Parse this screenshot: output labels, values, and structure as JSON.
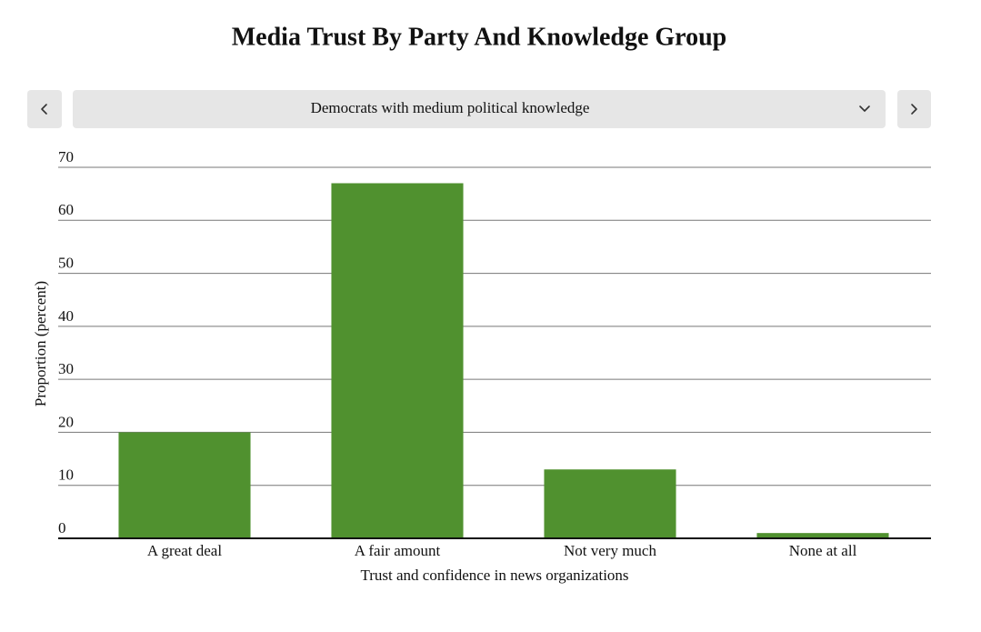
{
  "chart_data": {
    "type": "bar",
    "title": "Media Trust By Party And Knowledge Group",
    "selector": "Democrats with medium political knowledge",
    "x_label": "Trust and confidence in news organizations",
    "y_label": "Proportion (percent)",
    "categories": [
      "A great deal",
      "A fair amount",
      "Not very much",
      "None at all"
    ],
    "values": [
      20,
      67,
      13,
      1
    ],
    "color": "#50912f",
    "ylim": [
      0,
      70
    ],
    "yticks": [
      0,
      10,
      20,
      30,
      40,
      50,
      60,
      70
    ],
    "grid": true
  }
}
